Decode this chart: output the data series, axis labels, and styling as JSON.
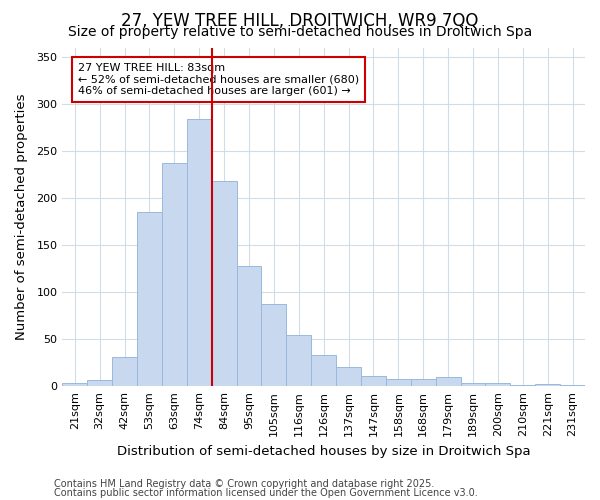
{
  "title": "27, YEW TREE HILL, DROITWICH, WR9 7QQ",
  "subtitle": "Size of property relative to semi-detached houses in Droitwich Spa",
  "xlabel": "Distribution of semi-detached houses by size in Droitwich Spa",
  "ylabel": "Number of semi-detached properties",
  "categories": [
    "21sqm",
    "32sqm",
    "42sqm",
    "53sqm",
    "63sqm",
    "74sqm",
    "84sqm",
    "95sqm",
    "105sqm",
    "116sqm",
    "126sqm",
    "137sqm",
    "147sqm",
    "158sqm",
    "168sqm",
    "179sqm",
    "189sqm",
    "200sqm",
    "210sqm",
    "221sqm",
    "231sqm"
  ],
  "values": [
    4,
    7,
    31,
    185,
    237,
    284,
    218,
    128,
    87,
    54,
    33,
    20,
    11,
    8,
    8,
    10,
    3,
    3,
    1,
    2,
    1
  ],
  "bar_color": "#c8d8ef",
  "bar_edge_color": "#9ab8de",
  "vline_color": "#cc0000",
  "vline_x_index": 6,
  "annotation_title": "27 YEW TREE HILL: 83sqm",
  "annotation_line1": "← 52% of semi-detached houses are smaller (680)",
  "annotation_line2": "46% of semi-detached houses are larger (601) →",
  "annotation_box_facecolor": "#ffffff",
  "annotation_box_edgecolor": "#cc0000",
  "ylim": [
    0,
    360
  ],
  "yticks": [
    0,
    50,
    100,
    150,
    200,
    250,
    300,
    350
  ],
  "footnote1": "Contains HM Land Registry data © Crown copyright and database right 2025.",
  "footnote2": "Contains public sector information licensed under the Open Government Licence v3.0.",
  "bg_color": "#ffffff",
  "plot_bg_color": "#ffffff",
  "grid_color": "#d0dce8",
  "title_fontsize": 12,
  "subtitle_fontsize": 10,
  "axis_label_fontsize": 9.5,
  "tick_fontsize": 8,
  "annotation_fontsize": 8,
  "footnote_fontsize": 7
}
